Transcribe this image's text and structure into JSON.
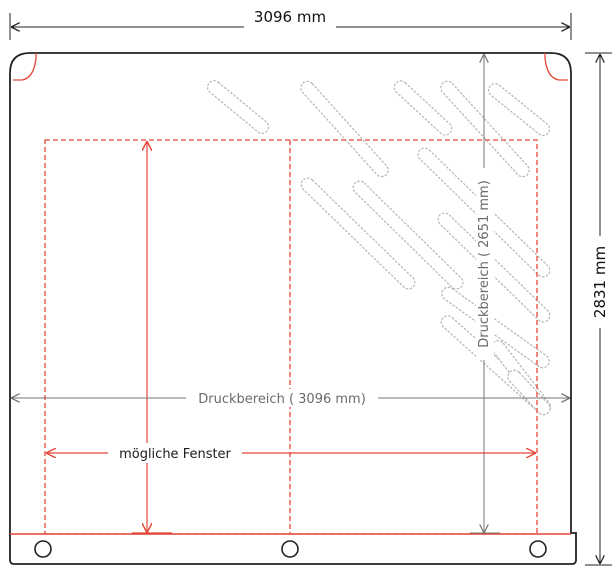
{
  "labels": {
    "overall_width": "3096 mm",
    "overall_height": "2831 mm",
    "print_width": "Druckbereich ( 3096 mm)",
    "print_height": "Druckbereich ( 2651 mm)",
    "windows": "mögliche Fenster"
  },
  "colors": {
    "outline": "#222222",
    "red": "#e3473a",
    "grey_dim": "#777777",
    "slot": "#b5b5b5"
  }
}
